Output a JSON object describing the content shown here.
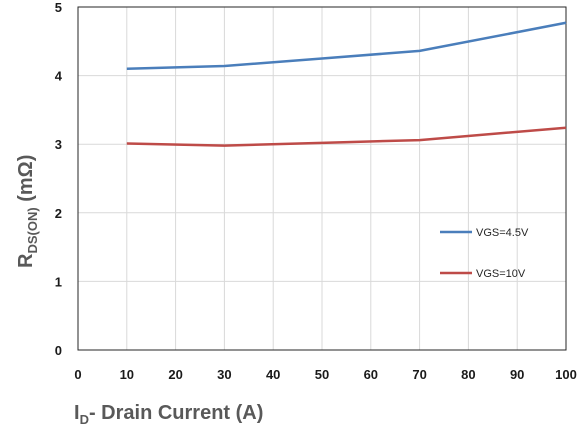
{
  "chart_data": {
    "type": "line",
    "xlabel_main": "I",
    "xlabel_sub": "D",
    "xlabel_rest": "- Drain Current (A)",
    "ylabel_main": "R",
    "ylabel_sub": "DS(ON)",
    "ylabel_rest": " (mΩ)",
    "xlim": [
      0,
      100
    ],
    "ylim": [
      0,
      5
    ],
    "xticks": [
      "0",
      "10",
      "20",
      "30",
      "40",
      "50",
      "60",
      "70",
      "80",
      "90",
      "100"
    ],
    "yticks": [
      "0",
      "1",
      "2",
      "3",
      "4",
      "5"
    ],
    "grid": "vertical and horizontal gridlines",
    "legend_position": "lower-right",
    "series": [
      {
        "name": "VGS=4.5V",
        "color": "#4a7ebb",
        "x": [
          10,
          30,
          50,
          70,
          100
        ],
        "y": [
          4.1,
          4.14,
          4.25,
          4.36,
          4.77
        ]
      },
      {
        "name": "VGS=10V",
        "color": "#be4b48",
        "x": [
          10,
          30,
          50,
          70,
          100
        ],
        "y": [
          3.01,
          2.98,
          3.02,
          3.06,
          3.24
        ]
      }
    ]
  }
}
